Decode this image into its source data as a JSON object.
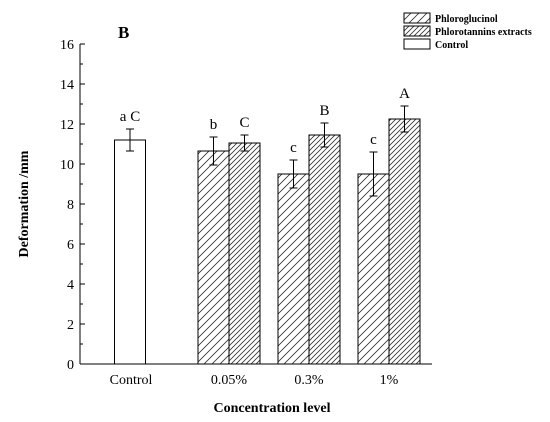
{
  "chart_data": {
    "type": "bar",
    "panel_label": "B",
    "categories": [
      "Control",
      "0.05%",
      "0.3%",
      "1%"
    ],
    "xlabel": "Concentration level",
    "ylabel": "Deformation /mm",
    "ylim": [
      0,
      16
    ],
    "yticks": [
      0,
      2,
      4,
      6,
      8,
      10,
      12,
      14,
      16
    ],
    "grid": false,
    "legend_position": "top-right",
    "series": [
      {
        "name": "Phloroglucinol",
        "pattern": "diagonal-hatch",
        "values": [
          null,
          10.65,
          9.5,
          9.5
        ],
        "errors": [
          null,
          0.7,
          0.7,
          1.1
        ],
        "labels": [
          null,
          "b",
          "c",
          "c"
        ]
      },
      {
        "name": "Phlorotannins extracts",
        "pattern": "dense-diagonal-hatch",
        "values": [
          null,
          11.05,
          11.45,
          12.25
        ],
        "errors": [
          null,
          0.4,
          0.6,
          0.65
        ],
        "labels": [
          null,
          "C",
          "B",
          "A"
        ]
      },
      {
        "name": "Control",
        "pattern": "none",
        "values": [
          11.2,
          null,
          null,
          null
        ],
        "errors": [
          0.55,
          null,
          null,
          null
        ],
        "labels": [
          "a C",
          null,
          null,
          null
        ]
      }
    ]
  }
}
